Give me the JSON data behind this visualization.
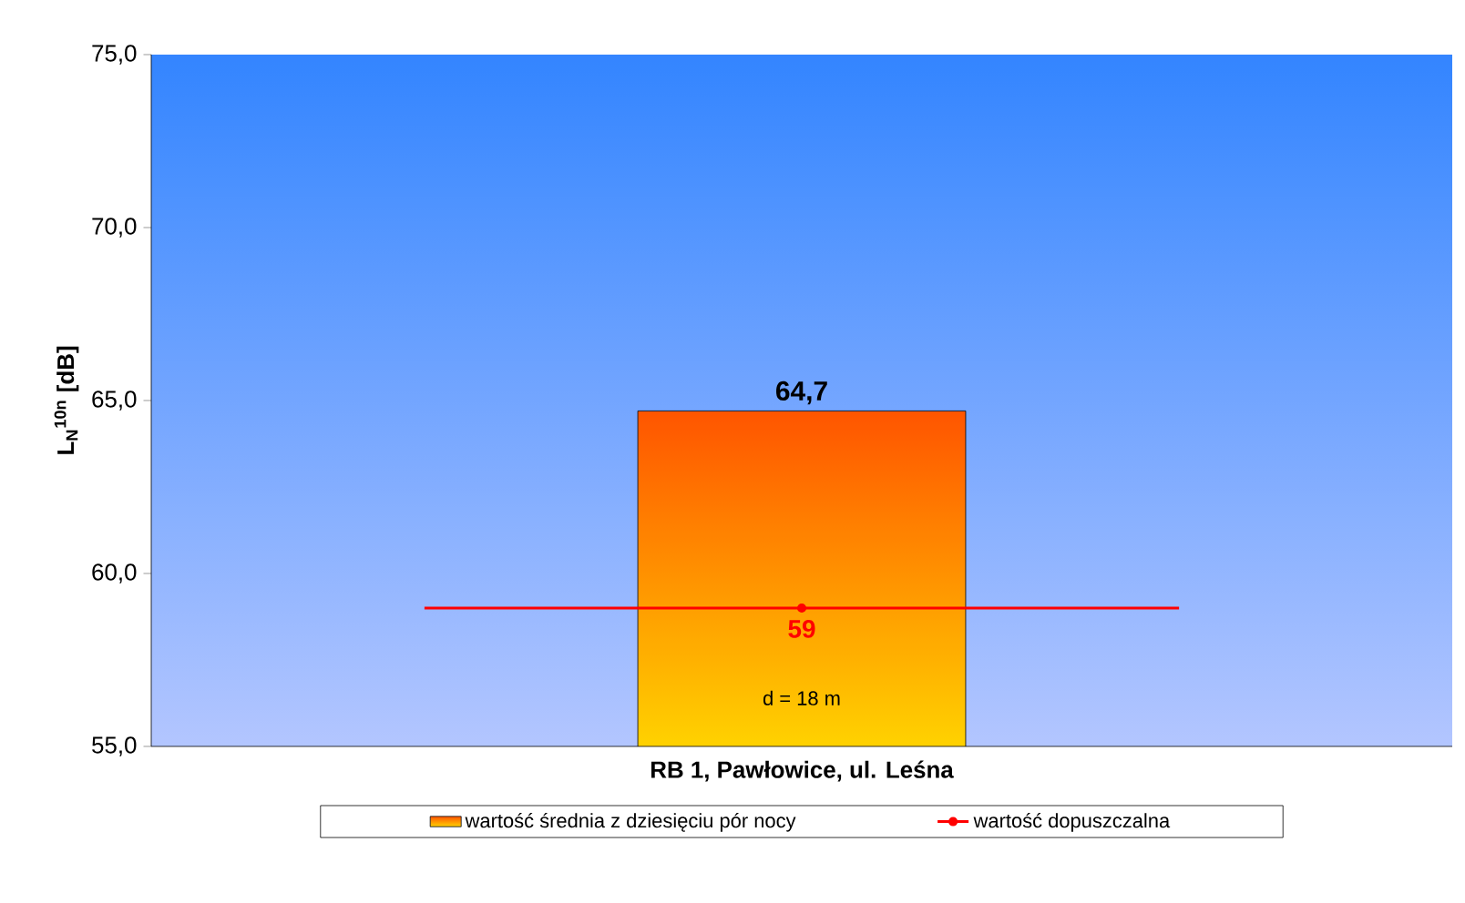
{
  "chart_data": {
    "type": "bar",
    "ylabel": "L$_{N}$$^{10n}$ [dB]",
    "categories": [
      "RB 1, Pawłowice, ul. Leśna"
    ],
    "series": [
      {
        "name": "wartość średnia z dziesięciu pór nocy",
        "color": "#ff9900",
        "values": [
          64.7
        ],
        "value_labels": [
          "64,7"
        ]
      },
      {
        "name": "wartość dopuszczalna",
        "type": "line",
        "color": "#ff0000",
        "values": [
          59
        ]
      }
    ],
    "ref_lines": [
      {
        "axis": "y",
        "value": 59,
        "label": "59",
        "color": "#ff0000"
      }
    ],
    "ylim": [
      55,
      75
    ],
    "yticks": [
      {
        "value": 55,
        "label": "55,0"
      },
      {
        "value": 60,
        "label": "60,0"
      },
      {
        "value": 65,
        "label": "65,0"
      },
      {
        "value": 70,
        "label": "70,0"
      },
      {
        "value": 75,
        "label": "75,0"
      }
    ],
    "annotations": [
      "d = 18 m"
    ],
    "marker": "circle",
    "legend": "bottom"
  }
}
